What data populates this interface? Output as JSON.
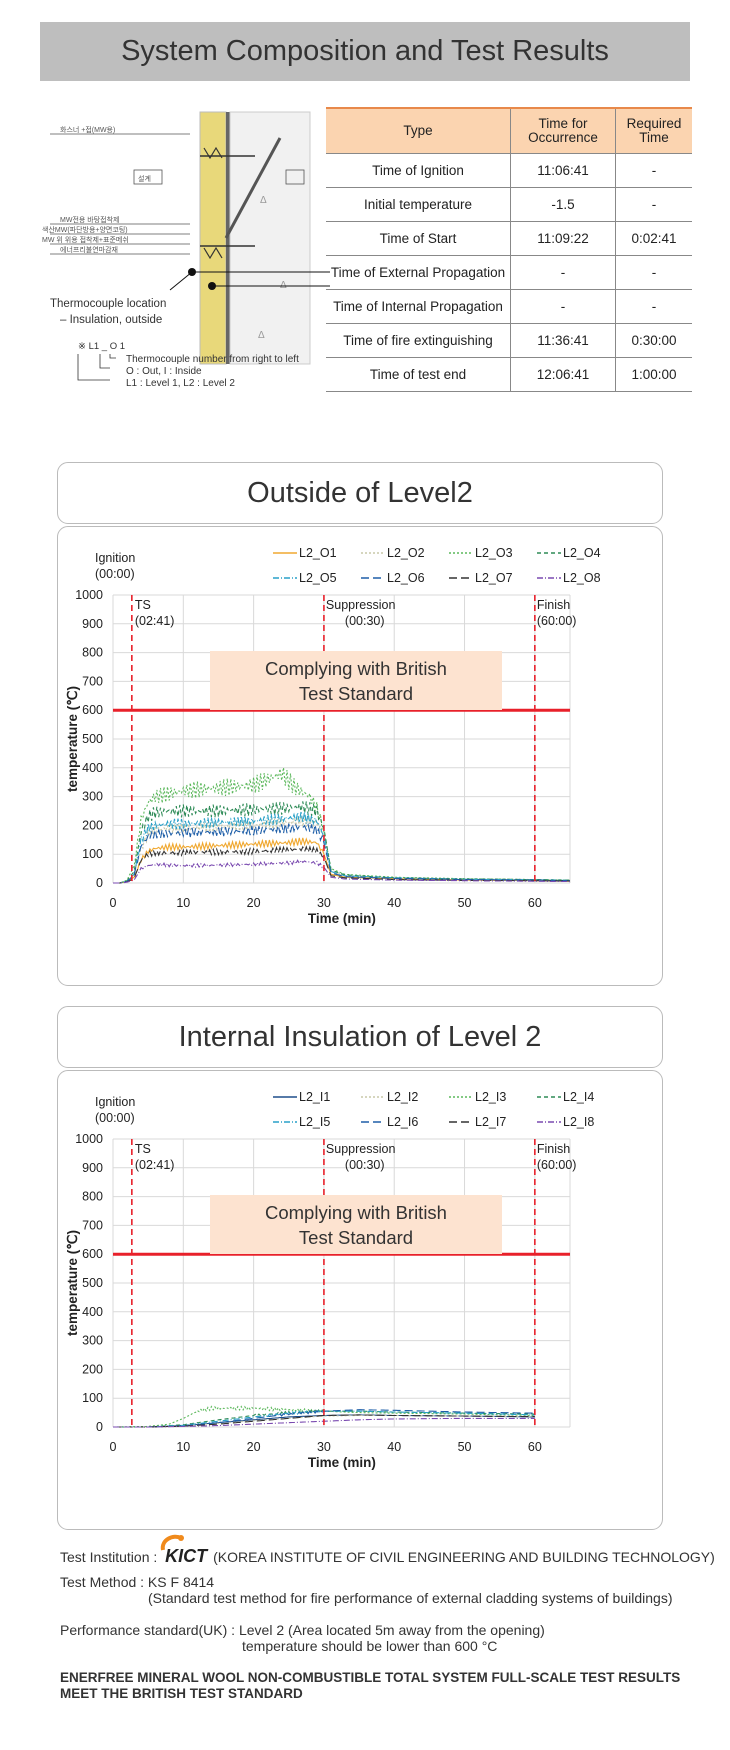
{
  "banner_title": "System Composition and Test Results",
  "diagram": {
    "labels": [
      "화스너 +접(MW용)",
      "설계",
      "MW전용 바탕접착제",
      "색산MW(파단방용+양면코팅)",
      "MW 위 위용 접착제+표준메쉬",
      "에너프리불연마감재"
    ],
    "thermocouple_caption_1": "Thermocouple location",
    "thermocouple_caption_2": "– Insulation, outside",
    "legend_code": "※ L1 _ O 1",
    "legend_line_1": "Thermocouple number from right to left",
    "legend_line_2": "O : Out, I : Inside",
    "legend_line_3": "L1 : Level 1, L2 : Level 2"
  },
  "table": {
    "headers": [
      "Type",
      "Time for\nOccurrence",
      "Required\nTime"
    ],
    "rows": [
      [
        "Time of Ignition",
        "11:06:41",
        "-"
      ],
      [
        "Initial temperature",
        "-1.5",
        "-"
      ],
      [
        "Time of Start",
        "11:09:22",
        "0:02:41"
      ],
      [
        "Time of External Propagation",
        "-",
        "-"
      ],
      [
        "Time of Internal Propagation",
        "-",
        "-"
      ],
      [
        "Time of fire extinguishing",
        "11:36:41",
        "0:30:00"
      ],
      [
        "Time of test end",
        "12:06:41",
        "1:00:00"
      ]
    ]
  },
  "charts_meta": [
    {
      "panel_title": "Outside of Level2",
      "standard_line1": "Complying with British",
      "standard_line2": "Test Standard"
    },
    {
      "panel_title": "Internal Insulation of Level 2",
      "standard_line1": "Complying with British",
      "standard_line2": "Test Standard"
    }
  ],
  "colors": {
    "threshold": "#e8202a",
    "marker": "#e8202a",
    "grid": "#d9d9d9",
    "standard_box": "#fde3d0"
  },
  "chart_data": [
    {
      "type": "line",
      "title": "",
      "xlabel": "Time (min)",
      "ylabel": "temperature (℃)",
      "xlim": [
        0,
        65
      ],
      "ylim": [
        0,
        1000
      ],
      "xticks": [
        0,
        10,
        20,
        30,
        40,
        50,
        60
      ],
      "yticks": [
        0,
        100,
        200,
        300,
        400,
        500,
        600,
        700,
        800,
        900,
        1000
      ],
      "grid": true,
      "legend_position": "top",
      "threshold": {
        "y": 600
      },
      "markers": [
        {
          "x": 0,
          "label_line1": "Ignition",
          "label_line2": "(00:00)"
        },
        {
          "x": 2.68,
          "label_line1": "TS",
          "label_line2": "(02:41)"
        },
        {
          "x": 30,
          "label_line1": "Suppression",
          "label_line2": "(00:30)"
        },
        {
          "x": 60,
          "label_line1": "Finish",
          "label_line2": "(60:00)"
        }
      ],
      "series": [
        {
          "name": "L2_O1",
          "color": "#f0a830",
          "dash": "",
          "x": [
            0,
            1,
            2,
            3,
            4,
            5,
            6,
            8,
            10,
            15,
            20,
            25,
            27,
            29,
            30,
            31,
            33,
            40,
            50,
            60,
            65
          ],
          "y": [
            0,
            0,
            5,
            20,
            80,
            110,
            120,
            125,
            125,
            130,
            135,
            140,
            145,
            140,
            100,
            30,
            20,
            15,
            10,
            8,
            6
          ]
        },
        {
          "name": "L2_O2",
          "color": "#c8c8a8",
          "dash": "2,2",
          "x": [
            0,
            1,
            2,
            3,
            4,
            5,
            6,
            8,
            10,
            15,
            20,
            25,
            27,
            29,
            30,
            31,
            33,
            40,
            50,
            60,
            65
          ],
          "y": [
            0,
            0,
            5,
            30,
            120,
            170,
            185,
            190,
            190,
            195,
            200,
            210,
            215,
            210,
            160,
            40,
            25,
            18,
            14,
            12,
            10
          ]
        },
        {
          "name": "L2_O3",
          "color": "#5cb85c",
          "dash": "2,2",
          "x": [
            0,
            1,
            2,
            3,
            4,
            5,
            6,
            8,
            10,
            15,
            20,
            22,
            24,
            26,
            28,
            29,
            30,
            31,
            33,
            40,
            50,
            60,
            65
          ],
          "y": [
            0,
            0,
            10,
            60,
            220,
            280,
            300,
            310,
            320,
            330,
            340,
            360,
            380,
            330,
            300,
            260,
            180,
            50,
            30,
            20,
            15,
            12,
            10
          ]
        },
        {
          "name": "L2_O4",
          "color": "#2e8b57",
          "dash": "4,3",
          "x": [
            0,
            1,
            2,
            3,
            4,
            5,
            6,
            8,
            10,
            15,
            20,
            25,
            27,
            29,
            30,
            31,
            33,
            40,
            50,
            60,
            65
          ],
          "y": [
            0,
            0,
            8,
            40,
            180,
            230,
            245,
            250,
            250,
            250,
            255,
            260,
            265,
            250,
            190,
            45,
            28,
            18,
            14,
            12,
            10
          ]
        },
        {
          "name": "L2_O5",
          "color": "#2aa1c8",
          "dash": "6,2,1,2",
          "x": [
            0,
            1,
            2,
            3,
            4,
            5,
            6,
            8,
            10,
            15,
            20,
            25,
            27,
            29,
            30,
            31,
            33,
            40,
            50,
            60,
            65
          ],
          "y": [
            0,
            0,
            6,
            30,
            150,
            190,
            200,
            205,
            205,
            210,
            215,
            225,
            230,
            215,
            165,
            40,
            25,
            18,
            13,
            11,
            9
          ]
        },
        {
          "name": "L2_O6",
          "color": "#1f5fa8",
          "dash": "8,4",
          "x": [
            0,
            1,
            2,
            3,
            4,
            5,
            6,
            8,
            10,
            15,
            20,
            25,
            27,
            29,
            30,
            31,
            33,
            40,
            50,
            60,
            65
          ],
          "y": [
            0,
            0,
            6,
            25,
            130,
            160,
            170,
            172,
            175,
            178,
            182,
            190,
            195,
            185,
            140,
            35,
            22,
            16,
            12,
            10,
            8
          ]
        },
        {
          "name": "L2_O7",
          "color": "#333333",
          "dash": "8,4",
          "x": [
            0,
            1,
            2,
            3,
            4,
            5,
            6,
            8,
            10,
            15,
            20,
            25,
            27,
            29,
            30,
            31,
            33,
            40,
            50,
            60,
            65
          ],
          "y": [
            0,
            0,
            4,
            15,
            80,
            100,
            105,
            105,
            105,
            108,
            110,
            115,
            118,
            112,
            90,
            25,
            18,
            12,
            9,
            8,
            7
          ]
        },
        {
          "name": "L2_O8",
          "color": "#7a4ab0",
          "dash": "6,2,1,2",
          "x": [
            0,
            1,
            2,
            3,
            4,
            5,
            6,
            8,
            10,
            15,
            20,
            25,
            27,
            29,
            30,
            31,
            33,
            40,
            50,
            60,
            65
          ],
          "y": [
            0,
            0,
            3,
            10,
            50,
            60,
            65,
            62,
            60,
            62,
            65,
            70,
            75,
            70,
            55,
            20,
            14,
            10,
            8,
            6,
            5
          ]
        }
      ]
    },
    {
      "type": "line",
      "title": "",
      "xlabel": "Time (min)",
      "ylabel": "temperature (℃)",
      "xlim": [
        0,
        65
      ],
      "ylim": [
        0,
        1000
      ],
      "xticks": [
        0,
        10,
        20,
        30,
        40,
        50,
        60
      ],
      "yticks": [
        0,
        100,
        200,
        300,
        400,
        500,
        600,
        700,
        800,
        900,
        1000
      ],
      "grid": true,
      "legend_position": "top",
      "threshold": {
        "y": 600
      },
      "markers": [
        {
          "x": 0,
          "label_line1": "Ignition",
          "label_line2": "(00:00)"
        },
        {
          "x": 2.68,
          "label_line1": "TS",
          "label_line2": "(02:41)"
        },
        {
          "x": 30,
          "label_line1": "Suppression",
          "label_line2": "(00:30)"
        },
        {
          "x": 60,
          "label_line1": "Finish",
          "label_line2": "(60:00)"
        }
      ],
      "series": [
        {
          "name": "L2_I1",
          "color": "#1f4e8c",
          "dash": "",
          "x": [
            0,
            5,
            10,
            15,
            20,
            25,
            30,
            35,
            40,
            50,
            60
          ],
          "y": [
            0,
            0,
            5,
            15,
            25,
            35,
            40,
            42,
            40,
            38,
            35
          ]
        },
        {
          "name": "L2_I2",
          "color": "#c8c8a8",
          "dash": "2,2",
          "x": [
            0,
            5,
            10,
            15,
            20,
            25,
            30,
            35,
            40,
            50,
            60
          ],
          "y": [
            0,
            0,
            5,
            12,
            22,
            30,
            38,
            40,
            40,
            38,
            36
          ]
        },
        {
          "name": "L2_I3",
          "color": "#5cb85c",
          "dash": "2,2",
          "x": [
            0,
            5,
            8,
            10,
            12,
            14,
            20,
            25,
            30,
            35,
            40,
            50,
            60
          ],
          "y": [
            0,
            2,
            10,
            30,
            55,
            65,
            65,
            60,
            55,
            50,
            48,
            45,
            40
          ]
        },
        {
          "name": "L2_I4",
          "color": "#2e8b57",
          "dash": "4,3",
          "x": [
            0,
            5,
            10,
            15,
            20,
            25,
            30,
            35,
            40,
            50,
            60
          ],
          "y": [
            0,
            0,
            8,
            25,
            40,
            50,
            55,
            55,
            52,
            48,
            45
          ]
        },
        {
          "name": "L2_I5",
          "color": "#2aa1c8",
          "dash": "6,2,1,2",
          "x": [
            0,
            5,
            10,
            15,
            20,
            25,
            30,
            35,
            40,
            50,
            60
          ],
          "y": [
            0,
            0,
            6,
            20,
            35,
            48,
            55,
            55,
            52,
            48,
            42
          ]
        },
        {
          "name": "L2_I6",
          "color": "#1f5fa8",
          "dash": "8,4",
          "x": [
            0,
            5,
            10,
            15,
            20,
            25,
            30,
            35,
            40,
            50,
            60
          ],
          "y": [
            0,
            0,
            4,
            15,
            30,
            45,
            55,
            60,
            58,
            52,
            48
          ]
        },
        {
          "name": "L2_I7",
          "color": "#333333",
          "dash": "8,4",
          "x": [
            0,
            5,
            10,
            15,
            20,
            25,
            30,
            35,
            40,
            50,
            60
          ],
          "y": [
            0,
            0,
            3,
            10,
            20,
            30,
            40,
            42,
            40,
            38,
            36
          ]
        },
        {
          "name": "L2_I8",
          "color": "#7a4ab0",
          "dash": "6,2,1,2",
          "x": [
            0,
            5,
            10,
            15,
            20,
            25,
            30,
            35,
            40,
            50,
            60
          ],
          "y": [
            0,
            0,
            2,
            5,
            10,
            15,
            20,
            25,
            28,
            30,
            30
          ]
        }
      ]
    }
  ],
  "footer": {
    "institution_label": "Test Institution :",
    "institution_logo": "KICT",
    "institution_name": "(KOREA INSTITUTE OF CIVIL ENGINEERING AND BUILDING TECHNOLOGY)",
    "method_label": "Test Method : KS F 8414",
    "method_desc": "(Standard test method for fire performance of external cladding systems of buildings)",
    "standard_label": "Performance standard(UK) : Level 2 (Area located 5m away from the opening)",
    "standard_desc": "temperature should be lower than 600 °C",
    "conclusion": "ENERFREE MINERAL WOOL NON-COMBUSTIBLE TOTAL SYSTEM FULL-SCALE TEST RESULTS MEET THE BRITISH TEST STANDARD"
  }
}
